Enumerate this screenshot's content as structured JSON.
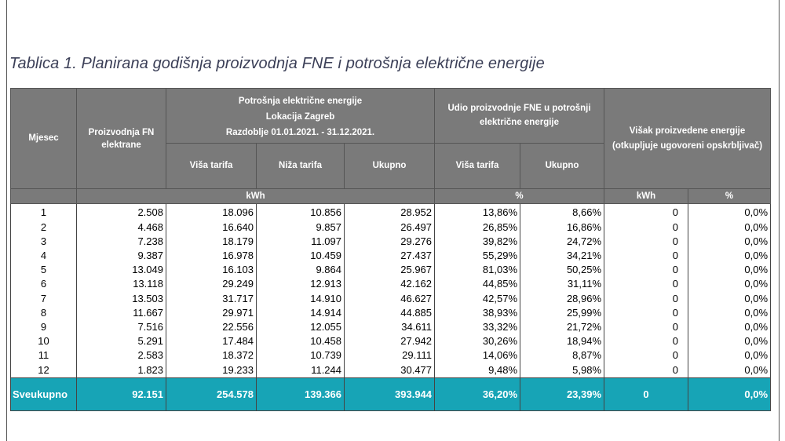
{
  "caption": "Tablica 1. Planirana godišnja proizvodnja FNE i potrošnja električne energije",
  "header": {
    "month": "Mjesec",
    "production": "Proizvodnja FN elektrane",
    "consumption_title": "Potrošnja električne energije",
    "location": "Lokacija Zagreb",
    "period": "Razdoblje 01.01.2021. - 31.12.2021.",
    "share_title": "Udio proizvodnje FNE u potrošnji električne energije",
    "surplus_title": "Višak proizvedene energije (otkupljuje ugovoreni opskrbljivač)",
    "higher_tariff": "Viša tarifa",
    "lower_tariff": "Niža tarifa",
    "total": "Ukupno",
    "share_higher": "Viša tarifa",
    "share_total": "Ukupno"
  },
  "units": {
    "kwh": "kWh",
    "percent": "%",
    "surplus_kwh": "kWh",
    "surplus_percent": "%"
  },
  "rows": [
    [
      "1",
      "2.508",
      "18.096",
      "10.856",
      "28.952",
      "13,86%",
      "8,66%",
      "0",
      "0,0%"
    ],
    [
      "2",
      "4.468",
      "16.640",
      "9.857",
      "26.497",
      "26,85%",
      "16,86%",
      "0",
      "0,0%"
    ],
    [
      "3",
      "7.238",
      "18.179",
      "11.097",
      "29.276",
      "39,82%",
      "24,72%",
      "0",
      "0,0%"
    ],
    [
      "4",
      "9.387",
      "16.978",
      "10.459",
      "27.437",
      "55,29%",
      "34,21%",
      "0",
      "0,0%"
    ],
    [
      "5",
      "13.049",
      "16.103",
      "9.864",
      "25.967",
      "81,03%",
      "50,25%",
      "0",
      "0,0%"
    ],
    [
      "6",
      "13.118",
      "29.249",
      "12.913",
      "42.162",
      "44,85%",
      "31,11%",
      "0",
      "0,0%"
    ],
    [
      "7",
      "13.503",
      "31.717",
      "14.910",
      "46.627",
      "42,57%",
      "28,96%",
      "0",
      "0,0%"
    ],
    [
      "8",
      "11.667",
      "29.971",
      "14.914",
      "44.885",
      "38,93%",
      "25,99%",
      "0",
      "0,0%"
    ],
    [
      "9",
      "7.516",
      "22.556",
      "12.055",
      "34.611",
      "33,32%",
      "21,72%",
      "0",
      "0,0%"
    ],
    [
      "10",
      "5.291",
      "17.484",
      "10.458",
      "27.942",
      "30,26%",
      "18,94%",
      "0",
      "0,0%"
    ],
    [
      "11",
      "2.583",
      "18.372",
      "10.739",
      "29.111",
      "14,06%",
      "8,87%",
      "0",
      "0,0%"
    ],
    [
      "12",
      "1.823",
      "19.233",
      "11.244",
      "30.477",
      "9,48%",
      "5,98%",
      "0",
      "0,0%"
    ]
  ],
  "total": {
    "label": "Sveukupno",
    "production": "92.151",
    "higher": "254.578",
    "lower": "139.366",
    "sum": "393.944",
    "share_higher": "36,20%",
    "share_total": "23,39%",
    "surplus_kwh": "0",
    "surplus_percent": "0,0%"
  },
  "colors": {
    "header_bg": "#7a7a7a",
    "total_bg": "#17a4b6",
    "caption": "#3b3f57"
  }
}
